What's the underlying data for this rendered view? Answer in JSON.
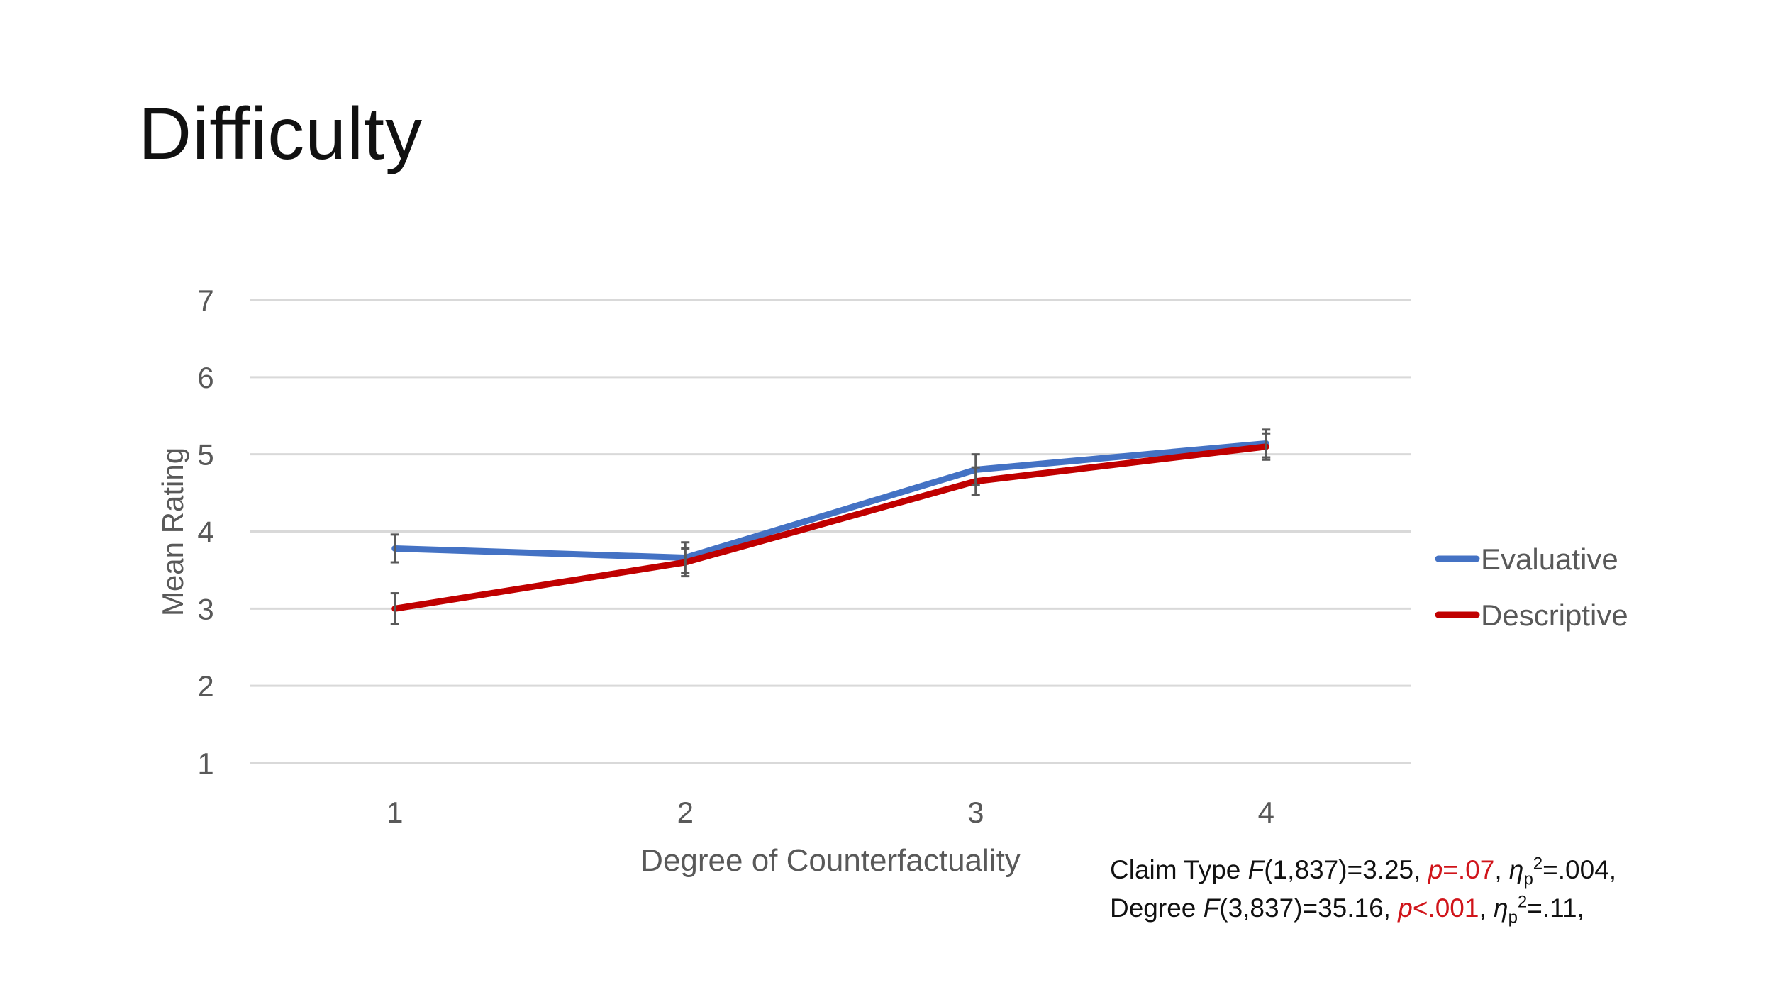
{
  "slide": {
    "title": "Difficulty"
  },
  "chart_data": {
    "type": "line",
    "title": "",
    "xlabel": "Degree of Counterfactuality",
    "ylabel": "Mean Rating",
    "categories": [
      "1",
      "2",
      "3",
      "4"
    ],
    "yticks": [
      "1",
      "2",
      "3",
      "4",
      "5",
      "6",
      "7"
    ],
    "ylim": [
      1,
      7
    ],
    "grid": true,
    "legend_position": "right",
    "series": [
      {
        "name": "Evaluative",
        "color": "#4472c4",
        "values": [
          3.78,
          3.66,
          4.8,
          5.14
        ],
        "error": [
          0.18,
          0.2,
          0.2,
          0.18
        ]
      },
      {
        "name": "Descriptive",
        "color": "#c00000",
        "values": [
          3.0,
          3.6,
          4.65,
          5.1
        ],
        "error": [
          0.2,
          0.18,
          0.18,
          0.17
        ]
      }
    ]
  },
  "stats": {
    "line1": {
      "label": "Claim Type",
      "f": "F",
      "f_args": "(1,837)=3.25,",
      "p": "p",
      "p_val": "=.07",
      "eta": "η",
      "eta_sub": "p",
      "eta_sup": "2",
      "eta_val": "=.004,"
    },
    "line2": {
      "label": "Degree",
      "f": "F",
      "f_args": "(3,837)=35.16,",
      "p": "p",
      "p_val": "<.001",
      "eta": "η",
      "eta_sub": "p",
      "eta_sup": "2",
      "eta_val": "=.11,"
    }
  }
}
